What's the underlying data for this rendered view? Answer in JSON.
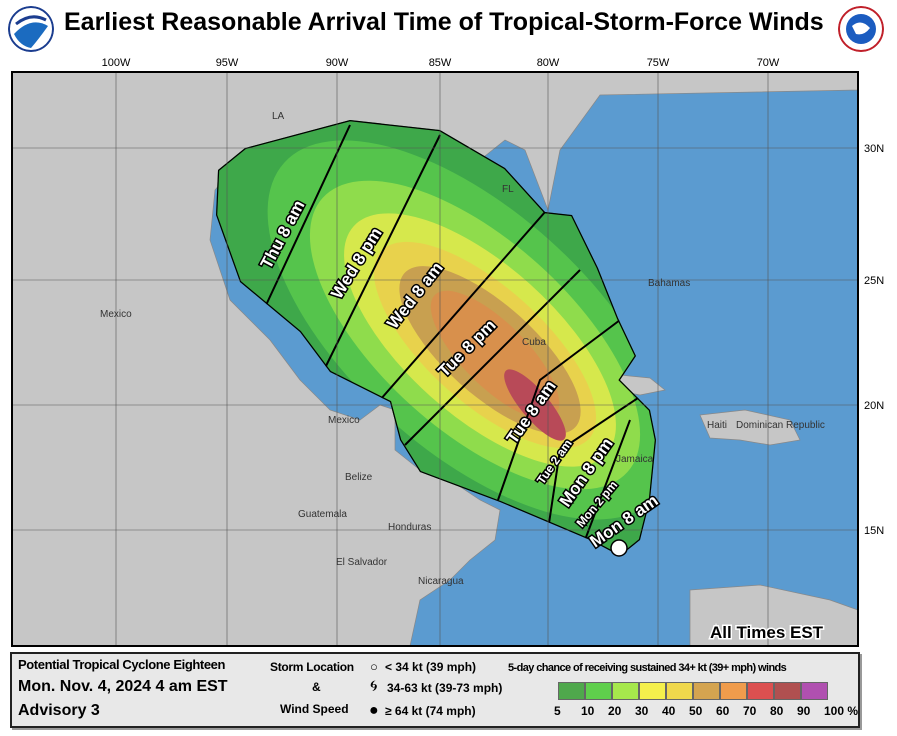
{
  "title": "Earliest Reasonable Arrival Time of Tropical-Storm-Force Winds",
  "logos": {
    "left": "NOAA",
    "right": "NATIONAL WEATHER SERVICE"
  },
  "colors": {
    "ocean": "#5b9bd0",
    "land": "#c6c6c6",
    "storm_marker": "#ffffff"
  },
  "map": {
    "lon_labels": [
      "100W",
      "95W",
      "90W",
      "85W",
      "80W",
      "75W",
      "70W"
    ],
    "lat_labels": [
      "30N",
      "25N",
      "20N",
      "15N"
    ],
    "places": [
      "LA",
      "FL",
      "Mexico",
      "Bahamas",
      "Cuba",
      "Haiti",
      "Dominican Republic",
      "Mexico",
      "Belize",
      "Guatemala",
      "Honduras",
      "El Salvador",
      "Nicaragua",
      "Jamaica"
    ],
    "time_labels": [
      "Thu  8 am",
      "Wed  8 pm",
      "Wed  8 am",
      "Tue  8 pm",
      "Tue  8 am",
      "Tue  2 am",
      "Mon  8 pm",
      "Mon  2 pm",
      "Mon  8 am"
    ],
    "times_note": "All Times EST"
  },
  "legend": {
    "storm_name": "Potential Tropical Cyclone Eighteen",
    "date": "Mon. Nov. 4, 2024  4 am EST",
    "advisory": "Advisory 3",
    "storm_location_label": "Storm Location",
    "amp": "&",
    "wind_speed_label": "Wind Speed",
    "symbols": [
      "< 34 kt (39 mph)",
      "34-63 kt (39-73 mph)",
      "≥ 64 kt (74 mph)"
    ],
    "scale_title": "5-day chance of receiving sustained 34+ kt (39+ mph) winds",
    "scale_ticks": [
      "5",
      "10",
      "20",
      "30",
      "40",
      "50",
      "60",
      "70",
      "80",
      "90",
      "100 %"
    ],
    "scale_colors": [
      "#4fa84c",
      "#5fcf4c",
      "#a6e84c",
      "#f4f04c",
      "#f0d84c",
      "#d4a450",
      "#f09c4c",
      "#dc5050",
      "#b05050",
      "#b050b0"
    ]
  }
}
